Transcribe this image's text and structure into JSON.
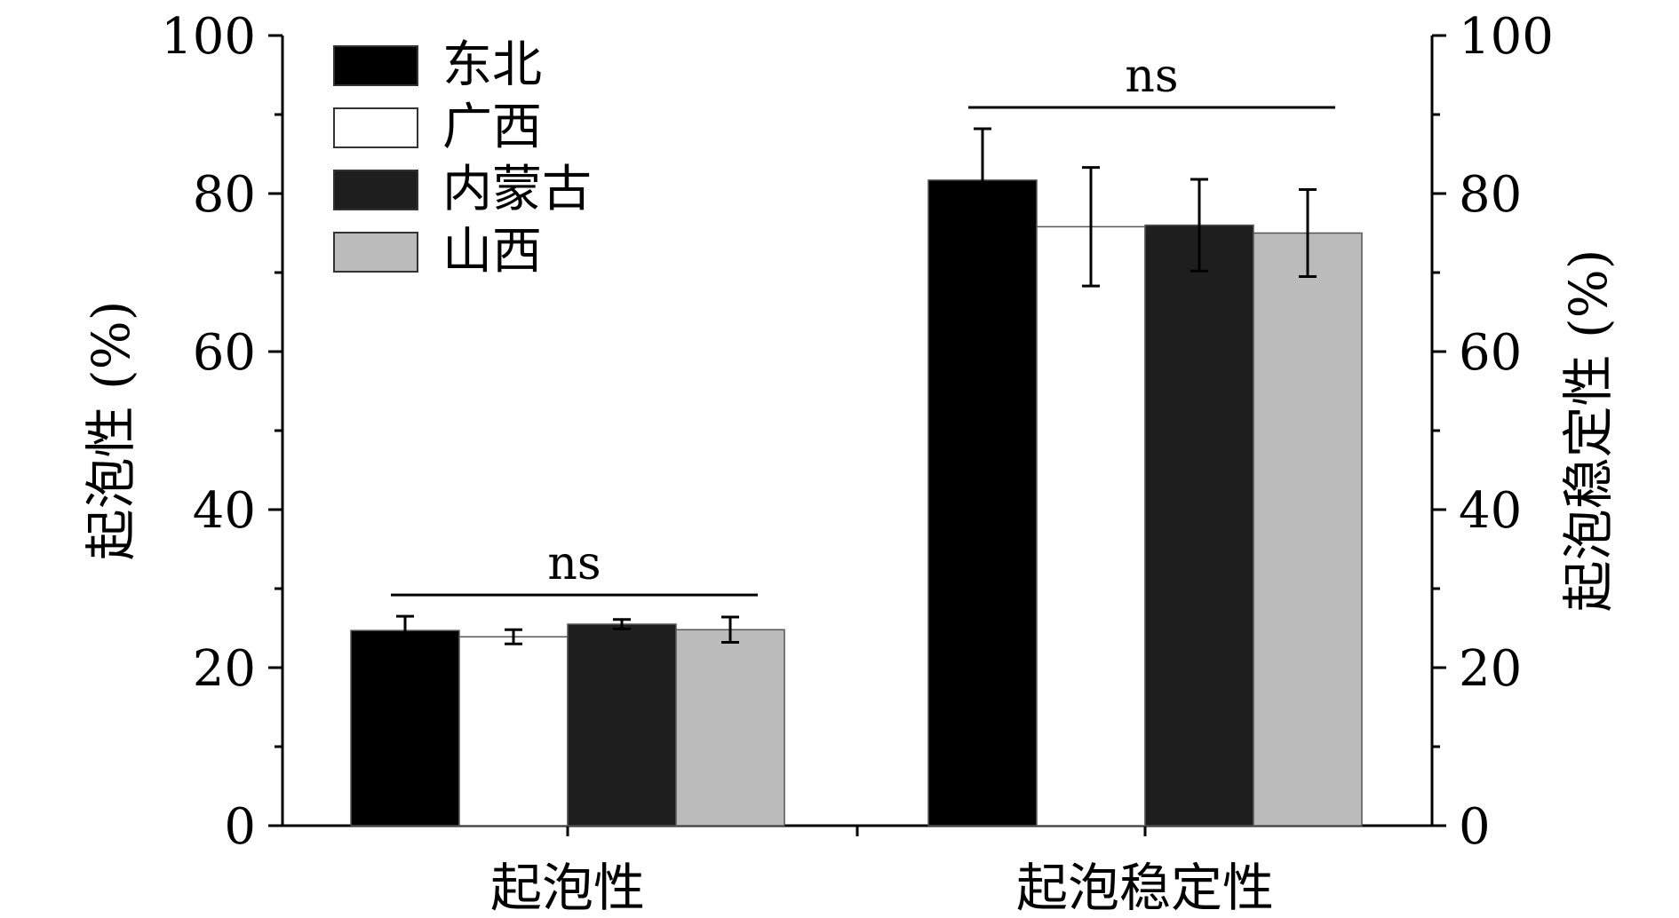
{
  "chart_data": {
    "type": "bar",
    "categories": [
      "起泡性",
      "起泡稳定性"
    ],
    "series": [
      {
        "name": "东北",
        "color": "#000000",
        "values": [
          24.7,
          81.7
        ],
        "errors": [
          1.8,
          6.5
        ]
      },
      {
        "name": "广西",
        "color": "#ffffff",
        "values": [
          23.9,
          75.8
        ],
        "errors": [
          0.9,
          7.5
        ]
      },
      {
        "name": "内蒙古",
        "color": "#1e1e1e",
        "values": [
          25.5,
          76.0
        ],
        "errors": [
          0.6,
          5.8
        ]
      },
      {
        "name": "山西",
        "color": "#bbbbbb",
        "values": [
          24.8,
          75.0
        ],
        "errors": [
          1.6,
          5.5
        ]
      }
    ],
    "ylabel": "起泡性 (%)",
    "y2label": "起泡稳定性 (%)",
    "ylim": [
      0,
      100
    ],
    "y2lim": [
      0,
      100
    ],
    "yticks": [
      "0",
      "20",
      "40",
      "60",
      "80",
      "100"
    ],
    "annotations": [
      "ns",
      "ns"
    ],
    "legend_position": "top-left",
    "grid": false
  }
}
